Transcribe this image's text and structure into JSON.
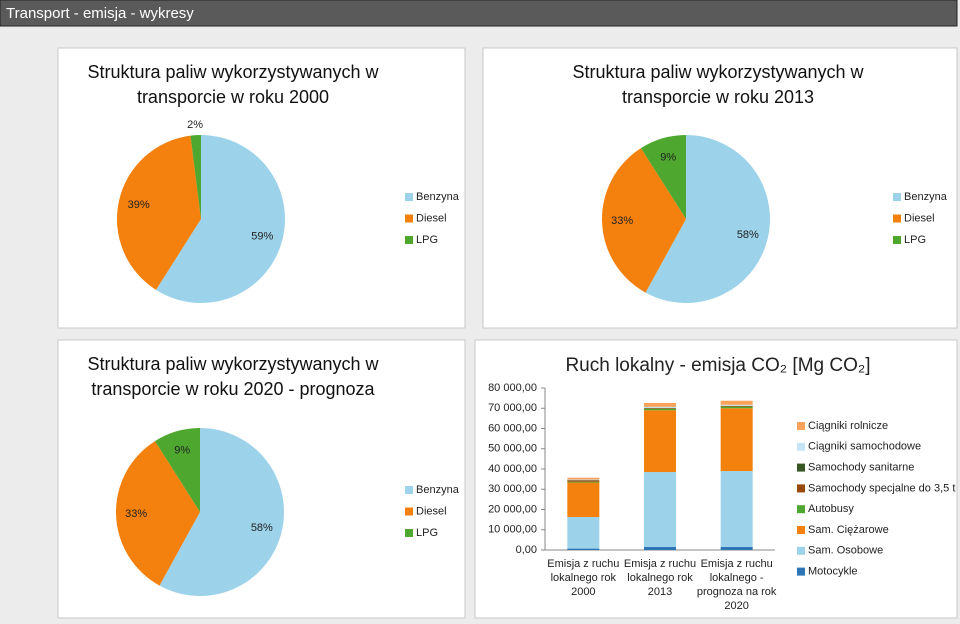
{
  "header": {
    "title": "Transport - emisja - wykresy"
  },
  "chart_data": [
    {
      "type": "pie",
      "title": "Struktura paliw wykorzystywanych w transporcie w roku 2000",
      "categories": [
        "Benzyna",
        "Diesel",
        "LPG"
      ],
      "values": [
        59,
        39,
        2
      ],
      "value_labels": [
        "59%",
        "39%",
        "2%"
      ],
      "colors": [
        "#9dd3ea",
        "#f4800d",
        "#4ea72e"
      ]
    },
    {
      "type": "pie",
      "title": "Struktura paliw wykorzystywanych w transporcie w roku 2013",
      "categories": [
        "Benzyna",
        "Diesel",
        "LPG"
      ],
      "values": [
        58,
        33,
        9
      ],
      "value_labels": [
        "58%",
        "33%",
        "9%"
      ],
      "colors": [
        "#9dd3ea",
        "#f4800d",
        "#4ea72e"
      ]
    },
    {
      "type": "pie",
      "title": "Struktura paliw wykorzystywanych w transporcie w roku 2020 - prognoza",
      "categories": [
        "Benzyna",
        "Diesel",
        "LPG"
      ],
      "values": [
        58,
        33,
        9
      ],
      "value_labels": [
        "58%",
        "33%",
        "9%"
      ],
      "colors": [
        "#9dd3ea",
        "#f4800d",
        "#4ea72e"
      ]
    },
    {
      "type": "bar",
      "stacked": true,
      "title": "Ruch lokalny - emisja CO₂ [Mg CO₂]",
      "categories": [
        "Emisja z ruchu lokalnego rok 2000",
        "Emisja z ruchu lokalnego rok 2013",
        "Emisja z ruchu lokalnego - prognoza na rok 2020"
      ],
      "series": [
        {
          "name": "Motocykle",
          "color": "#2e75b6",
          "values": [
            700,
            1500,
            1500
          ]
        },
        {
          "name": "Sam. Osobowe",
          "color": "#9dd3ea",
          "values": [
            15600,
            37000,
            37500
          ]
        },
        {
          "name": "Sam. Ciężarowe",
          "color": "#f4800d",
          "values": [
            17000,
            30500,
            31000
          ]
        },
        {
          "name": "Autobusy",
          "color": "#4ea72e",
          "values": [
            400,
            800,
            800
          ]
        },
        {
          "name": "Samochody specjalne do 3,5 t",
          "color": "#984807",
          "values": [
            700,
            300,
            300
          ]
        },
        {
          "name": "Samochody sanitarne",
          "color": "#375623",
          "values": [
            100,
            100,
            100
          ]
        },
        {
          "name": "Ciągniki samochodowe",
          "color": "#c5e5f5",
          "values": [
            300,
            500,
            500
          ]
        },
        {
          "name": "Ciągniki rolnicze",
          "color": "#f9a35a",
          "values": [
            900,
            1900,
            2000
          ]
        }
      ],
      "ylim": [
        0,
        80000
      ],
      "yticks": [
        {
          "value": 0,
          "label": "0,00"
        },
        {
          "value": 10000,
          "label": "10 000,00"
        },
        {
          "value": 20000,
          "label": "20 000,00"
        },
        {
          "value": 30000,
          "label": "30 000,00"
        },
        {
          "value": 40000,
          "label": "40 000,00"
        },
        {
          "value": 50000,
          "label": "50 000,00"
        },
        {
          "value": 60000,
          "label": "60 000,00"
        },
        {
          "value": 70000,
          "label": "70 000,00"
        },
        {
          "value": 80000,
          "label": "80 000,00"
        }
      ],
      "grid": false
    }
  ]
}
